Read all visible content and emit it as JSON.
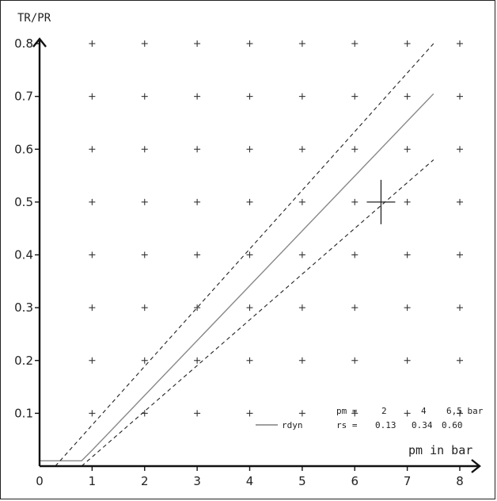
{
  "chart_data": {
    "type": "line",
    "title": "",
    "xlabel": "pm in bar",
    "ylabel": "TR/PR",
    "xlim": [
      0,
      8
    ],
    "ylim": [
      0,
      0.8
    ],
    "x_ticks": [
      "0",
      "1",
      "2",
      "3",
      "4",
      "5",
      "6",
      "7",
      "8"
    ],
    "y_ticks": [
      "0.1",
      "0.2",
      "0.3",
      "0.4",
      "0.5",
      "0.6",
      "0.7",
      "0.8"
    ],
    "grid": "plus markers",
    "series": [
      {
        "name": "rdyn",
        "style": "solid",
        "color": "#888888",
        "points": [
          [
            0,
            0.01
          ],
          [
            0.8,
            0.01
          ],
          [
            1,
            0.03
          ],
          [
            7.5,
            0.705
          ]
        ]
      },
      {
        "name": "",
        "style": "dashed",
        "color": "#222222",
        "points": [
          [
            0.3,
            0.0
          ],
          [
            7.5,
            0.8
          ]
        ]
      },
      {
        "name": "",
        "style": "dashed",
        "color": "#222222",
        "points": [
          [
            0.8,
            0.0
          ],
          [
            7.5,
            0.58
          ]
        ]
      }
    ],
    "marker": {
      "x": 6.5,
      "y": 0.5,
      "shape": "crosshair"
    },
    "annotation": {
      "row1": [
        "pm =",
        "2",
        "4",
        "6,5 bar"
      ],
      "row2": [
        "rs =",
        "0.13",
        "0.34",
        "0.60"
      ]
    },
    "legend": {
      "label": "rdyn",
      "placement": "bottom-right"
    }
  }
}
